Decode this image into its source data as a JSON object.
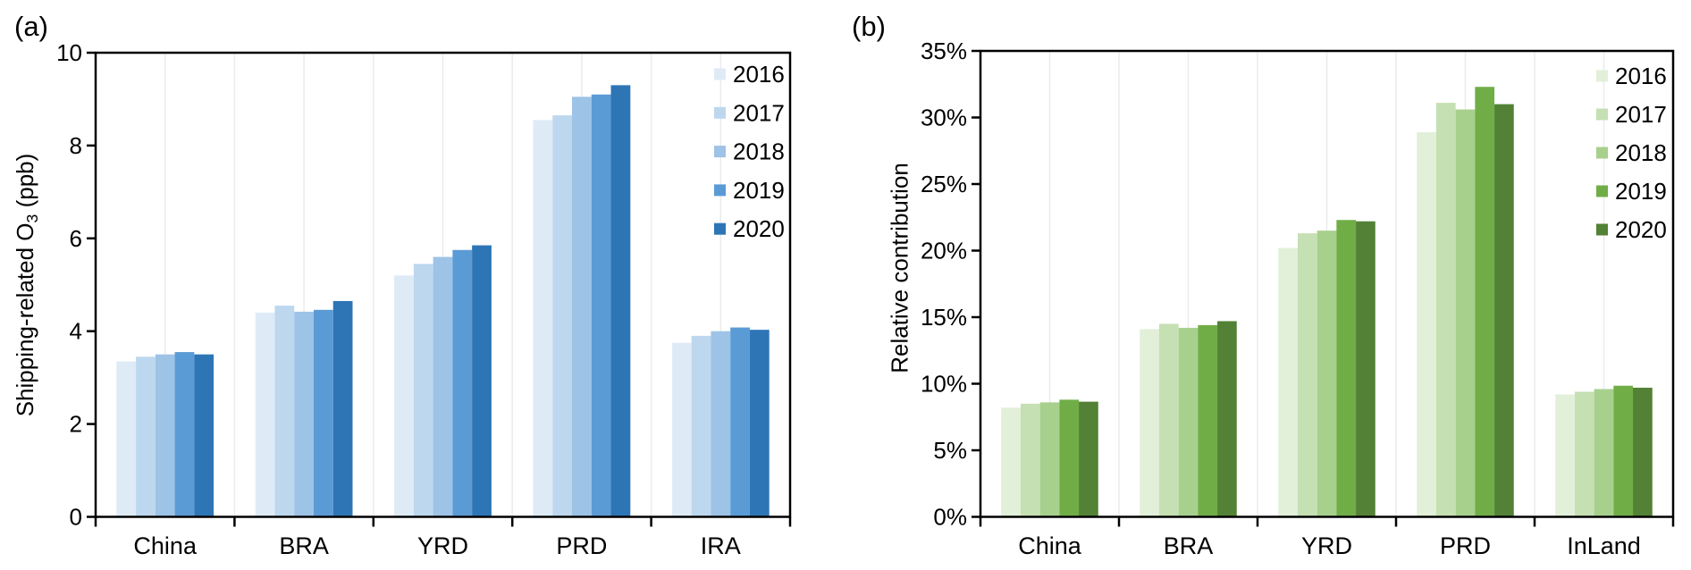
{
  "chart_data": [
    {
      "type": "bar",
      "panel_label": "(a)",
      "ylabel": {
        "prefix": "Shipping-related O",
        "sub": "3",
        "suffix": " (ppb)"
      },
      "ylabel_text": "Shipping-related O3 (ppb)",
      "categories": [
        "China",
        "BRA",
        "YRD",
        "PRD",
        "IRA"
      ],
      "series": [
        {
          "name": "2016",
          "color": "#DEEBF7",
          "values": [
            3.35,
            4.4,
            5.2,
            8.55,
            3.75
          ]
        },
        {
          "name": "2017",
          "color": "#BDD7EE",
          "values": [
            3.45,
            4.55,
            5.45,
            8.65,
            3.9
          ]
        },
        {
          "name": "2018",
          "color": "#9DC3E6",
          "values": [
            3.5,
            4.42,
            5.6,
            9.05,
            4.0
          ]
        },
        {
          "name": "2019",
          "color": "#5B9BD5",
          "values": [
            3.55,
            4.46,
            5.75,
            9.1,
            4.08
          ]
        },
        {
          "name": "2020",
          "color": "#2E75B6",
          "values": [
            3.5,
            4.65,
            5.85,
            9.3,
            4.03
          ]
        }
      ],
      "ylim": [
        0,
        10
      ],
      "ytick_step": 2,
      "yticks": [
        "0",
        "2",
        "4",
        "6",
        "8",
        "10"
      ],
      "grid": "vertical-light",
      "legend_position": "upper-right-inside",
      "frame": "full-box",
      "axis_color": "#000000",
      "gridline_color": "#ebebeb"
    },
    {
      "type": "bar",
      "panel_label": "(b)",
      "ylabel": {
        "prefix": "Relative contribution",
        "sub": "",
        "suffix": ""
      },
      "ylabel_text": "Relative contribution",
      "categories": [
        "China",
        "BRA",
        "YRD",
        "PRD",
        "InLand"
      ],
      "series": [
        {
          "name": "2016",
          "color": "#E2EFD9",
          "values": [
            8.2,
            14.1,
            20.2,
            28.9,
            9.2
          ]
        },
        {
          "name": "2017",
          "color": "#C5E0B3",
          "values": [
            8.5,
            14.5,
            21.3,
            31.1,
            9.4
          ]
        },
        {
          "name": "2018",
          "color": "#A8D08D",
          "values": [
            8.6,
            14.2,
            21.5,
            30.6,
            9.6
          ]
        },
        {
          "name": "2019",
          "color": "#70AD47",
          "values": [
            8.8,
            14.4,
            22.3,
            32.3,
            9.85
          ]
        },
        {
          "name": "2020",
          "color": "#538135",
          "values": [
            8.65,
            14.7,
            22.2,
            31.0,
            9.7
          ]
        }
      ],
      "ylim": [
        0,
        35
      ],
      "ytick_step": 5,
      "yticks": [
        "0%",
        "5%",
        "10%",
        "15%",
        "20%",
        "25%",
        "30%",
        "35%"
      ],
      "grid": "vertical-light",
      "legend_position": "upper-right-inside",
      "frame": "full-box",
      "axis_color": "#000000",
      "gridline_color": "#ebebeb"
    }
  ]
}
